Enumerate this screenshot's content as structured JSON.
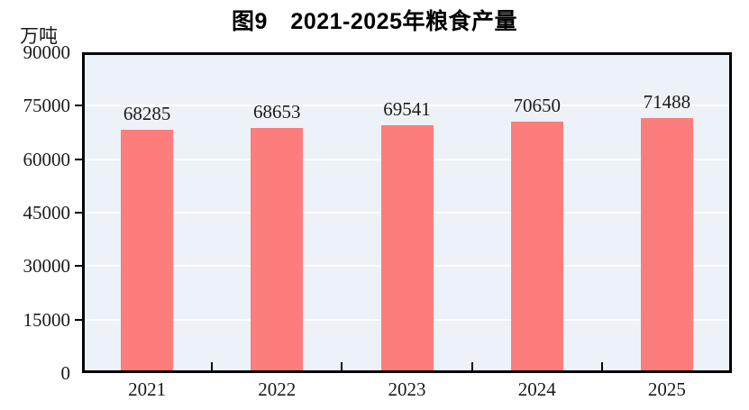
{
  "chart_data": {
    "type": "bar",
    "title": "图9　2021-2025年粮食产量",
    "unit_label": "万吨",
    "categories": [
      "2021",
      "2022",
      "2023",
      "2024",
      "2025"
    ],
    "values": [
      68285,
      68653,
      69541,
      70650,
      71488
    ],
    "data_labels": [
      "68285",
      "68653",
      "69541",
      "70650",
      "71488"
    ],
    "ylim": [
      0,
      90000
    ],
    "yticks": [
      0,
      15000,
      30000,
      45000,
      60000,
      75000,
      90000
    ],
    "ytick_labels": [
      "0",
      "15000",
      "30000",
      "45000",
      "60000",
      "75000",
      "90000"
    ],
    "grid": true,
    "legend": "none",
    "colors": {
      "bar": "#fd7d7d",
      "plot_background": "#edf2f8",
      "gridline": "#ffffff",
      "axis_border": "#000000",
      "text": "#1a1a1a",
      "page_background": "#ffffff"
    }
  }
}
